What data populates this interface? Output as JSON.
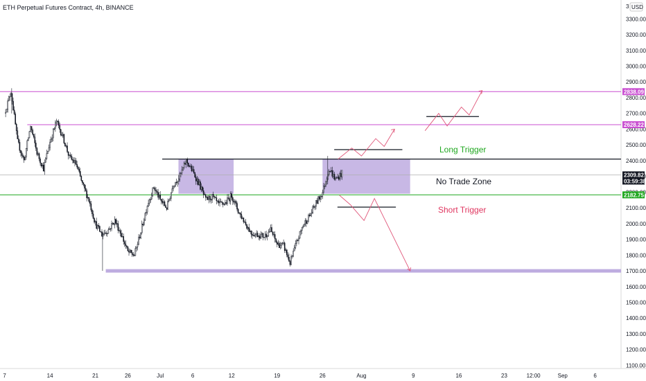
{
  "chart_data": {
    "type": "candlestick",
    "title": "ETH Perpetual Futures Contract, 4h, BINANCE",
    "currency": "USD",
    "y_ticks": [
      3300,
      3200,
      3100,
      3000,
      2900,
      2800,
      2700,
      2600,
      2500,
      2400,
      2300,
      2200,
      2100,
      2000,
      1900,
      1800,
      1700,
      1600,
      1500,
      1400,
      1300,
      1200,
      1100
    ],
    "y_tick_labels": [
      "3300.00",
      "3200.00",
      "3100.00",
      "3000.00",
      "2900.00",
      "2800.00",
      "2700.00",
      "2600.00",
      "2500.00",
      "2400.00",
      "2300.00",
      "2200.00",
      "2100.00",
      "2000.00",
      "1900.00",
      "1800.00",
      "1700.00",
      "1600.00",
      "1500.00",
      "1400.00",
      "1300.00",
      "1200.00",
      "1100.00"
    ],
    "y_top_partial": "3",
    "ylim": [
      1080,
      3420
    ],
    "x_ticks": [
      {
        "label": "7",
        "day": 0
      },
      {
        "label": "14",
        "day": 7
      },
      {
        "label": "21",
        "day": 14
      },
      {
        "label": "26",
        "day": 19
      },
      {
        "label": "Jul",
        "day": 24
      },
      {
        "label": "6",
        "day": 29
      },
      {
        "label": "12",
        "day": 35
      },
      {
        "label": "19",
        "day": 42
      },
      {
        "label": "26",
        "day": 49
      },
      {
        "label": "Aug",
        "day": 55
      },
      {
        "label": "9",
        "day": 63
      },
      {
        "label": "16",
        "day": 70
      },
      {
        "label": "23",
        "day": 77
      },
      {
        "label": "12:00",
        "day": 81.5
      },
      {
        "label": "Sep",
        "day": 86
      },
      {
        "label": "6",
        "day": 91
      }
    ],
    "xlim": [
      -0.7,
      95
    ],
    "price_path": [
      [
        0,
        2700
      ],
      [
        1,
        2840
      ],
      [
        2,
        2520
      ],
      [
        3,
        2400
      ],
      [
        4,
        2620
      ],
      [
        5,
        2450
      ],
      [
        6,
        2350
      ],
      [
        7,
        2520
      ],
      [
        8,
        2650
      ],
      [
        9,
        2550
      ],
      [
        10,
        2420
      ],
      [
        11,
        2380
      ],
      [
        12,
        2250
      ],
      [
        13,
        2150
      ],
      [
        14,
        2000
      ],
      [
        15,
        1930
      ],
      [
        16,
        1960
      ],
      [
        17,
        2020
      ],
      [
        18,
        1930
      ],
      [
        19,
        1820
      ],
      [
        20,
        1800
      ],
      [
        21,
        1950
      ],
      [
        22,
        2120
      ],
      [
        23,
        2230
      ],
      [
        24,
        2150
      ],
      [
        25,
        2100
      ],
      [
        26,
        2250
      ],
      [
        27,
        2300
      ],
      [
        28,
        2400
      ],
      [
        29,
        2330
      ],
      [
        30,
        2250
      ],
      [
        31,
        2150
      ],
      [
        32,
        2170
      ],
      [
        33,
        2120
      ],
      [
        34,
        2130
      ],
      [
        35,
        2180
      ],
      [
        36,
        2080
      ],
      [
        37,
        2010
      ],
      [
        38,
        1940
      ],
      [
        39,
        1930
      ],
      [
        40,
        1920
      ],
      [
        41,
        1960
      ],
      [
        42,
        1870
      ],
      [
        43,
        1860
      ],
      [
        44,
        1750
      ],
      [
        45,
        1880
      ],
      [
        46,
        1990
      ],
      [
        47,
        2050
      ],
      [
        48,
        2130
      ],
      [
        49,
        2200
      ],
      [
        50,
        2350
      ],
      [
        51,
        2280
      ],
      [
        52,
        2320
      ]
    ],
    "current_price": "2309.82",
    "countdown": "03:59:38",
    "levels": [
      {
        "price": 2838.09,
        "label": "2838.09",
        "color": "#c94fd1"
      },
      {
        "price": 2628.22,
        "label": "2628.22",
        "color": "#c94fd1"
      },
      {
        "price": 2182.75,
        "label": "2182.75",
        "color": "#1fa71f"
      }
    ],
    "long_trigger_line": 2410,
    "support_band": 1700,
    "zones": [
      {
        "x0": 26.8,
        "x1": 35.3,
        "y0": 2190,
        "y1": 2410
      },
      {
        "x0": 49.0,
        "x1": 62.5,
        "y0": 2190,
        "y1": 2410
      }
    ],
    "annotations": [
      {
        "text": "Long Trigger",
        "color": "#1fa71f"
      },
      {
        "text": "No Trade Zone",
        "color": "#131722"
      },
      {
        "text": "Short Trigger",
        "color": "#e0355f"
      }
    ]
  }
}
